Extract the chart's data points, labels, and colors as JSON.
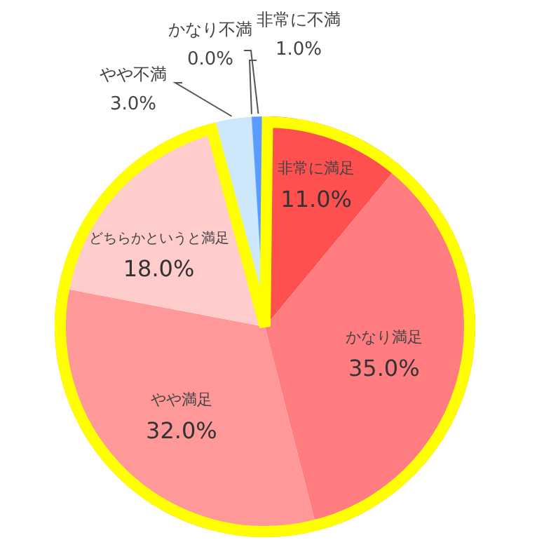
{
  "chart_data": {
    "type": "pie",
    "categories": [
      "非常に満足",
      "かなり満足",
      "やや満足",
      "どちらかというと満足",
      "やや不満",
      "かなり不満",
      "非常に不満"
    ],
    "values": [
      11.0,
      35.0,
      32.0,
      18.0,
      3.0,
      0.0,
      1.0
    ],
    "value_labels": [
      "11.0%",
      "35.0%",
      "32.0%",
      "18.0%",
      "3.0%",
      "0.0%",
      "1.0%"
    ],
    "colors": [
      "#ff5050",
      "#ff7c80",
      "#ff9999",
      "#ffcccc",
      "#cce8fa",
      "#99ccff",
      "#5b9bff"
    ]
  }
}
